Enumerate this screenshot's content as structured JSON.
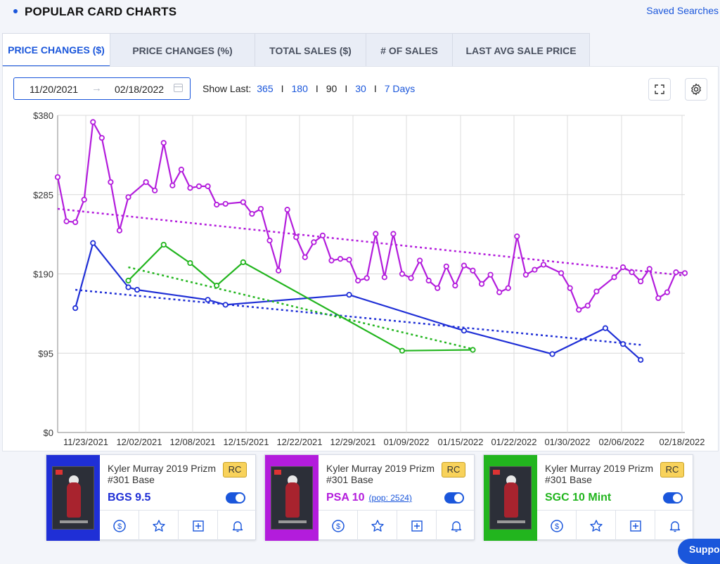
{
  "header": {
    "title": "POPULAR CARD CHARTS",
    "saved_searches": "Saved Searches"
  },
  "tabs": [
    {
      "label": "PRICE CHANGES ($)",
      "active": true
    },
    {
      "label": "PRICE CHANGES (%)",
      "active": false
    },
    {
      "label": "TOTAL SALES ($)",
      "active": false
    },
    {
      "label": "# OF SALES",
      "active": false
    },
    {
      "label": "LAST AVG SALE PRICE",
      "active": false
    }
  ],
  "date_range": {
    "start": "11/20/2021",
    "end": "02/18/2022",
    "arrow": "→"
  },
  "show_last": {
    "label": "Show Last:",
    "options": [
      "365",
      "180",
      "90",
      "30",
      "7 Days"
    ],
    "selected": "90",
    "separator": "I"
  },
  "colors": {
    "bgs": "#1f2fd6",
    "psa": "#b31cdc",
    "sgc": "#22b51e",
    "accent": "#1a56db"
  },
  "chart_data": {
    "type": "line",
    "y_ticks": [
      "$380",
      "$285",
      "$190",
      "$95",
      "$0"
    ],
    "x_ticks": [
      "11/23/2021",
      "12/02/2021",
      "12/08/2021",
      "12/15/2021",
      "12/22/2021",
      "12/29/2021",
      "01/09/2022",
      "01/15/2022",
      "01/22/2022",
      "01/30/2022",
      "02/06/2022",
      "02/18/2022"
    ],
    "ylim": [
      0,
      380
    ],
    "series": [
      {
        "key": "psa",
        "values": [
          [
            0,
            306
          ],
          [
            1,
            253
          ],
          [
            2,
            252
          ],
          [
            3,
            279
          ],
          [
            4,
            372
          ],
          [
            5,
            353
          ],
          [
            6,
            300
          ],
          [
            7,
            242
          ],
          [
            8,
            282
          ],
          [
            10,
            300
          ],
          [
            11,
            290
          ],
          [
            12,
            347
          ],
          [
            13,
            296
          ],
          [
            14,
            315
          ],
          [
            15,
            293
          ],
          [
            16,
            295
          ],
          [
            17,
            295
          ],
          [
            18,
            273
          ],
          [
            19,
            274
          ],
          [
            21,
            276
          ],
          [
            22,
            262
          ],
          [
            23,
            268
          ],
          [
            24,
            230
          ],
          [
            25,
            194
          ],
          [
            26,
            267
          ],
          [
            27,
            234
          ],
          [
            28,
            210
          ],
          [
            29,
            228
          ],
          [
            30,
            236
          ],
          [
            31,
            206
          ],
          [
            32,
            208
          ],
          [
            33,
            207
          ],
          [
            34,
            182
          ],
          [
            35,
            185
          ],
          [
            36,
            238
          ],
          [
            37,
            186
          ],
          [
            38,
            238
          ],
          [
            39,
            190
          ],
          [
            40,
            185
          ],
          [
            41,
            206
          ],
          [
            42,
            182
          ],
          [
            43,
            173
          ],
          [
            44,
            199
          ],
          [
            45,
            176
          ],
          [
            46,
            200
          ],
          [
            47,
            194
          ],
          [
            48,
            178
          ],
          [
            49,
            189
          ],
          [
            50,
            168
          ],
          [
            51,
            173
          ],
          [
            52,
            235
          ],
          [
            53,
            189
          ],
          [
            54,
            195
          ],
          [
            55,
            201
          ],
          [
            57,
            191
          ],
          [
            58,
            173
          ],
          [
            59,
            147
          ],
          [
            60,
            152
          ],
          [
            61,
            169
          ],
          [
            63,
            186
          ],
          [
            64,
            198
          ],
          [
            65,
            192
          ],
          [
            66,
            181
          ],
          [
            67,
            196
          ],
          [
            68,
            161
          ],
          [
            69,
            168
          ],
          [
            70,
            192
          ],
          [
            71,
            191
          ]
        ],
        "trend": [
          [
            0,
            268
          ],
          [
            71,
            188
          ]
        ]
      },
      {
        "key": "bgs",
        "values": [
          [
            2,
            149
          ],
          [
            4,
            227
          ],
          [
            8,
            174
          ],
          [
            9,
            171
          ],
          [
            17,
            159
          ],
          [
            19,
            153
          ],
          [
            33,
            165
          ],
          [
            46,
            122
          ],
          [
            56,
            94
          ],
          [
            62,
            125
          ],
          [
            64,
            106
          ],
          [
            66,
            87
          ]
        ],
        "trend": [
          [
            2,
            171
          ],
          [
            66,
            105
          ]
        ]
      },
      {
        "key": "sgc",
        "values": [
          [
            8,
            182
          ],
          [
            12,
            225
          ],
          [
            15,
            203
          ],
          [
            18,
            176
          ],
          [
            21,
            204
          ],
          [
            39,
            98
          ],
          [
            47,
            99
          ]
        ],
        "trend": [
          [
            8,
            198
          ],
          [
            47,
            100
          ]
        ]
      }
    ]
  },
  "cards": [
    {
      "key": "bgs",
      "name": "Kyler Murray 2019 Prizm #301 Base",
      "rc": "RC",
      "grade": "BGS 9.5",
      "pop": ""
    },
    {
      "key": "psa",
      "name": "Kyler Murray 2019 Prizm #301 Base",
      "rc": "RC",
      "grade": "PSA 10",
      "pop": "(pop: 2524)"
    },
    {
      "key": "sgc",
      "name": "Kyler Murray 2019 Prizm #301 Base",
      "rc": "RC",
      "grade": "SGC 10 Mint",
      "pop": ""
    }
  ],
  "support": {
    "label": "Suppor"
  }
}
